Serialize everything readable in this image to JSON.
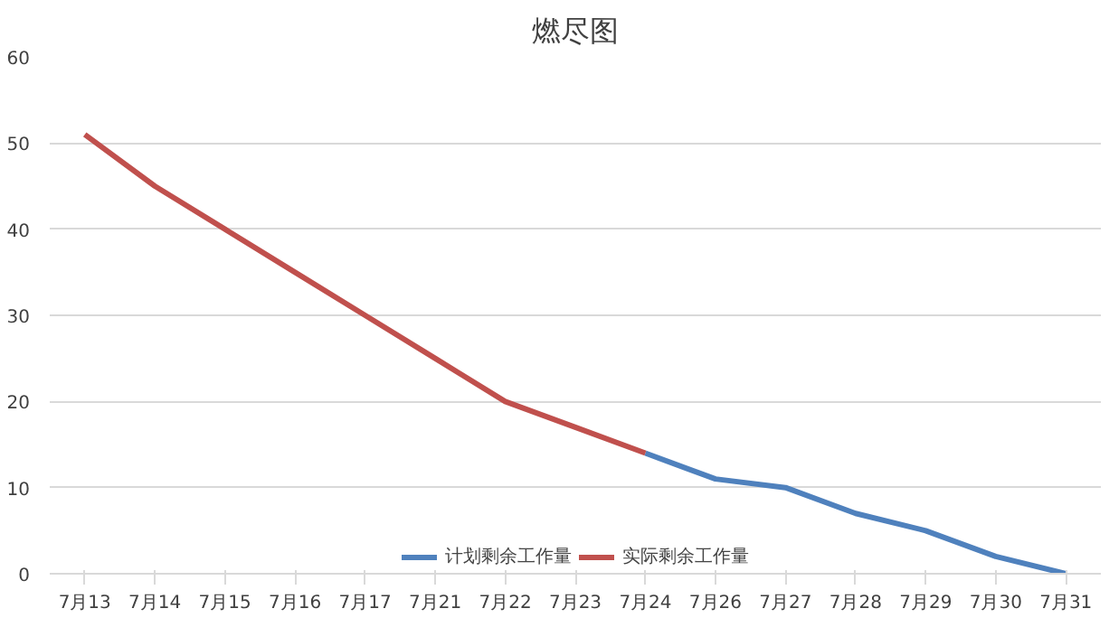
{
  "chart_data": {
    "type": "line",
    "title": "燃尽图",
    "categories": [
      "7月13",
      "7月14",
      "7月15",
      "7月16",
      "7月17",
      "7月21",
      "7月22",
      "7月23",
      "7月24",
      "7月26",
      "7月27",
      "7月28",
      "7月29",
      "7月30",
      "7月31"
    ],
    "series": [
      {
        "name": "计划剩余工作量",
        "color": "#4f81bd",
        "values": [
          null,
          null,
          null,
          null,
          null,
          null,
          null,
          null,
          14,
          11,
          10,
          7,
          5,
          2,
          0
        ]
      },
      {
        "name": "实际剩余工作量",
        "color": "#c0504d",
        "values": [
          51,
          45,
          40,
          35,
          30,
          25,
          20,
          17,
          14,
          null,
          null,
          null,
          null,
          null,
          null
        ]
      }
    ],
    "ylim": [
      0,
      60
    ],
    "yticks": [
      0,
      10,
      20,
      30,
      40,
      50,
      60
    ],
    "grid": "y",
    "legend": "bottom",
    "marker": "none",
    "line_style": "solid"
  }
}
